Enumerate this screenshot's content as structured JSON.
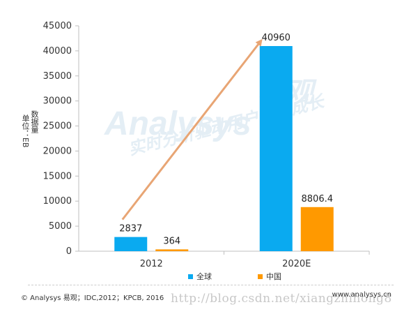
{
  "chart_data": {
    "type": "bar",
    "categories": [
      "2012",
      "2020E"
    ],
    "series": [
      {
        "name": "全球",
        "color": "#0aaaf0",
        "values": [
          2837,
          40960
        ],
        "labels": [
          "2837",
          "40960"
        ]
      },
      {
        "name": "中国",
        "color": "#ff9900",
        "values": [
          364,
          8806.4
        ],
        "labels": [
          "364",
          "8806.4"
        ]
      }
    ],
    "ylim": [
      0,
      45000
    ],
    "yticks": [
      0,
      5000,
      10000,
      15000,
      20000,
      25000,
      30000,
      35000,
      40000,
      45000
    ],
    "ylabel_main": "数据量",
    "ylabel_unit": "单位：EB",
    "legend_position": "bottom",
    "grid": false,
    "trend_arrow_color": "#e8a574"
  },
  "footer": {
    "source": "© Analysys 易观；IDC,2012；KPCB, 2016",
    "site": "www.analysys.cn",
    "watermark_url": "http://blog.csdn.net/xiangzhihong8"
  },
  "watermark_logo": {
    "brand": "Analysys",
    "brand_cn": "易观",
    "slogan": "实时分析驱动用户资产成长"
  }
}
